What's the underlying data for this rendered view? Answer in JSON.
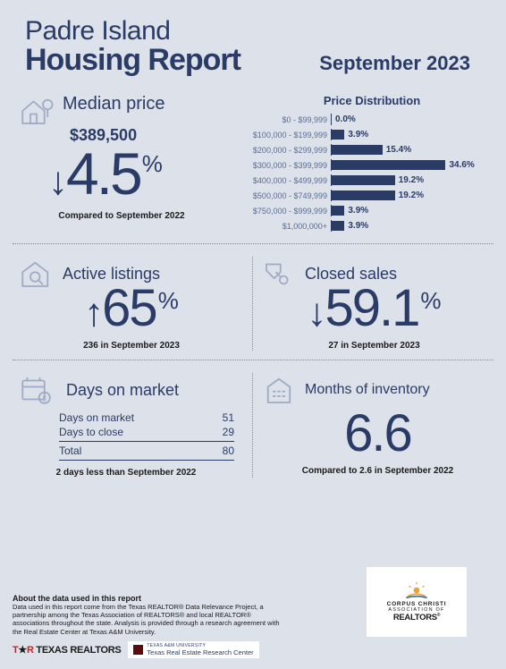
{
  "title": {
    "line1": "Padre Island",
    "line2": "Housing Report"
  },
  "date": "September 2023",
  "median": {
    "title": "Median price",
    "price": "$389,500",
    "change": "4.5",
    "direction": "down",
    "compare": "Compared to September 2022"
  },
  "distribution": {
    "title": "Price Distribution",
    "max_pct": 38,
    "rows": [
      {
        "label": "$0 - $99,999",
        "pct": 0.0,
        "display": "0.0%"
      },
      {
        "label": "$100,000 - $199,999",
        "pct": 3.9,
        "display": "3.9%"
      },
      {
        "label": "$200,000 - $299,999",
        "pct": 15.4,
        "display": "15.4%"
      },
      {
        "label": "$300,000 - $399,999",
        "pct": 34.6,
        "display": "34.6%"
      },
      {
        "label": "$400,000 - $499,999",
        "pct": 19.2,
        "display": "19.2%"
      },
      {
        "label": "$500,000 - $749,999",
        "pct": 19.2,
        "display": "19.2%"
      },
      {
        "label": "$750,000 - $999,999",
        "pct": 3.9,
        "display": "3.9%"
      },
      {
        "label": "$1,000,000+",
        "pct": 3.9,
        "display": "3.9%"
      }
    ]
  },
  "active": {
    "title": "Active listings",
    "change": "65",
    "direction": "up",
    "sub": "236 in September 2023"
  },
  "closed": {
    "title": "Closed sales",
    "change": "59.1",
    "direction": "down",
    "sub": "27 in September 2023"
  },
  "days": {
    "title": "Days on market",
    "market_label": "Days on market",
    "market_val": "51",
    "close_label": "Days to close",
    "close_val": "29",
    "total_label": "Total",
    "total_val": "80",
    "sub": "2 days less than September 2022"
  },
  "inventory": {
    "title": "Months of inventory",
    "value": "6.6",
    "sub": "Compared to 2.6 in September 2022"
  },
  "footer": {
    "title": "About the data used in this report",
    "text": "Data used in this report come from the Texas REALTOR® Data Relevance Project, a partnership among the Texas Association of REALTORS® and local REALTOR® associations throughout the state. Analysis is provided through a research agreement with the Real Estate Center at Texas A&M University.",
    "tx_logo": "TEXAS REALTORS",
    "research": "Texas Real Estate Research Center",
    "research_sub": "TEXAS A&M UNIVERSITY",
    "ccar1": "CORPUS CHRISTI",
    "ccar2": "ASSOCIATION OF",
    "ccar3": "REALTORS"
  },
  "colors": {
    "primary": "#2a3b66",
    "bg": "#dce1ea",
    "icon_stroke": "#9fabc4"
  }
}
